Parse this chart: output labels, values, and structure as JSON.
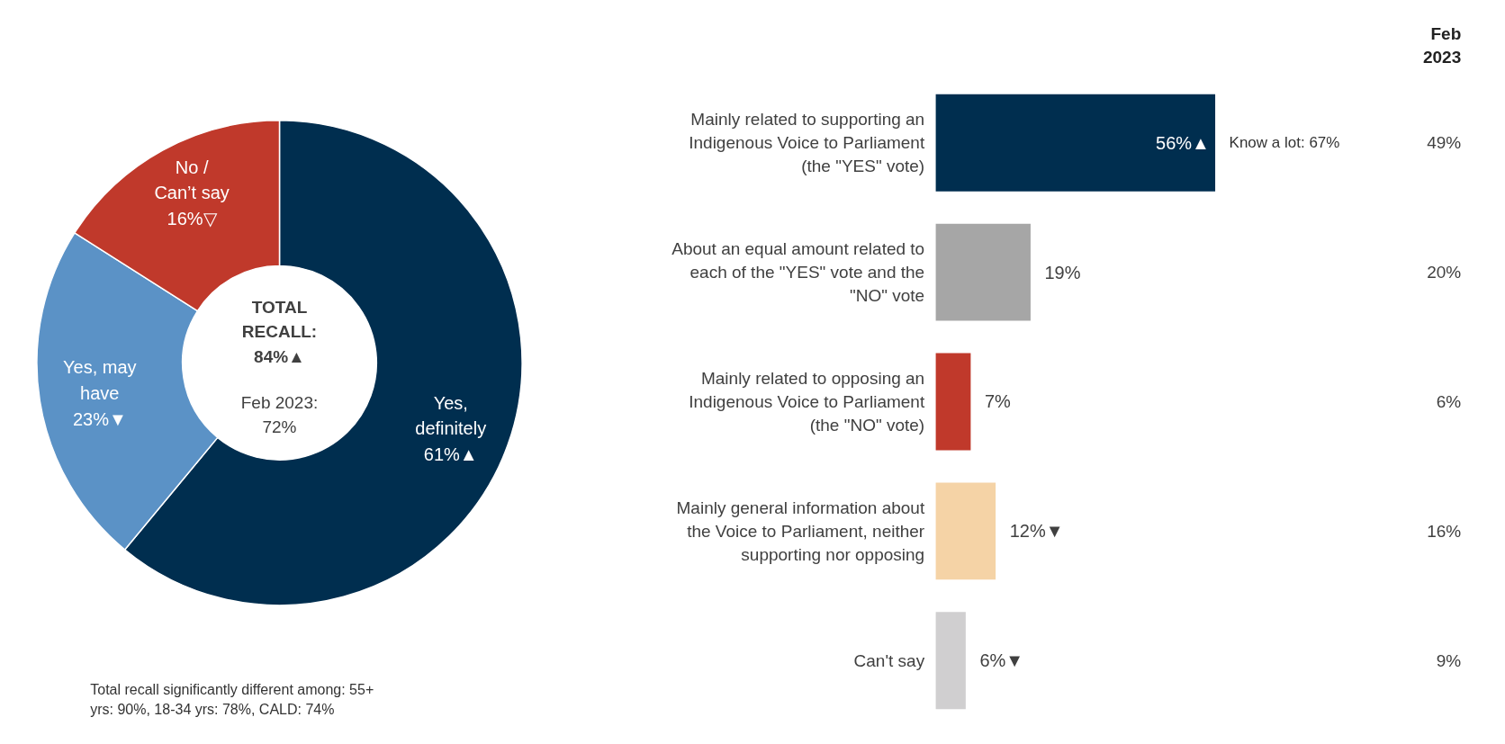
{
  "chart_data": [
    {
      "type": "donut",
      "categories": [
        "Yes, definitely",
        "Yes, may have",
        "No / Can’t say"
      ],
      "values": [
        61,
        23,
        16
      ],
      "colors": [
        "#002e4f",
        "#5b92c6",
        "#c0392b"
      ],
      "value_labels": [
        "61%▲",
        "23%▼",
        "16%▽"
      ],
      "annotations": [
        "TOTAL RECALL: 84%▲",
        "Feb 2023: 72%",
        "Total recall significantly different among: 55+ yrs: 90%, 18-34 yrs: 78%, CALD: 74%"
      ]
    },
    {
      "type": "bar",
      "orientation": "horizontal",
      "categories": [
        "Mainly related to supporting an Indigenous Voice to Parliament (the \"YES\" vote)",
        "About an equal amount related to each of the \"YES\" vote and the \"NO\" vote",
        "Mainly related to opposing an Indigenous Voice to Parliament (the \"NO\" vote)",
        "Mainly general information about the Voice to Parliament, neither supporting nor opposing",
        "Can't say"
      ],
      "values": [
        56,
        19,
        7,
        12,
        6
      ],
      "colors": [
        "#002e4f",
        "#a6a6a6",
        "#c0392b",
        "#f5d3a6",
        "#d0cfd0"
      ],
      "value_labels": [
        "56%▲",
        "19%",
        "7%",
        "12%▼",
        "6%▼"
      ],
      "annotations": [
        {
          "text": "Know a lot: 67%",
          "x": 56,
          "y": "Mainly related to supporting an Indigenous Voice to Parliament (the \"YES\" vote)"
        },
        "Feb 2023",
        "49%",
        "20%",
        "6%",
        "16%",
        "9%"
      ],
      "grid": false
    }
  ]
}
